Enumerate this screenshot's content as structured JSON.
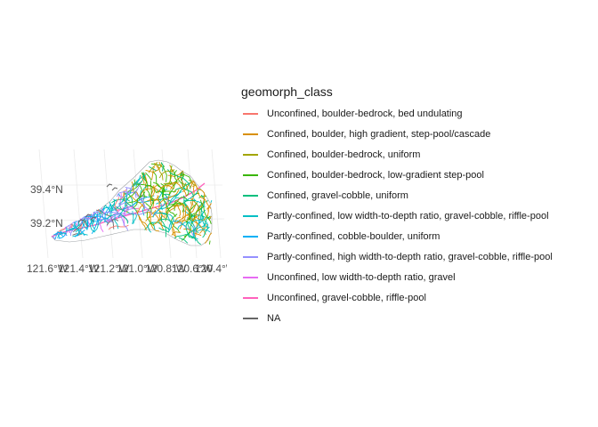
{
  "legend": {
    "title": "geomorph_class",
    "items": [
      {
        "label": "Unconfined, boulder-bedrock, bed undulating",
        "color": "#F8766D"
      },
      {
        "label": "Confined, boulder, high gradient, step-pool/cascade",
        "color": "#D89000"
      },
      {
        "label": "Confined, boulder-bedrock, uniform",
        "color": "#A3A500"
      },
      {
        "label": "Confined, boulder-bedrock, low-gradient step-pool",
        "color": "#39B600"
      },
      {
        "label": "Confined, gravel-cobble, uniform",
        "color": "#00BF7D"
      },
      {
        "label": "Partly-confined, low width-to-depth ratio, gravel-cobble, riffle-pool",
        "color": "#00BFC4"
      },
      {
        "label": "Partly-confined, cobble-boulder, uniform",
        "color": "#00B0F6"
      },
      {
        "label": "Partly-confined, high width-to-depth ratio, gravel-cobble, riffle-pool",
        "color": "#9590FF"
      },
      {
        "label": "Unconfined, low width-to-depth ratio, gravel",
        "color": "#E76BF3"
      },
      {
        "label": "Unconfined, gravel-cobble, riffle-pool",
        "color": "#FF62BC"
      },
      {
        "label": "NA",
        "color": "#666666"
      }
    ]
  },
  "map": {
    "y_ticks": [
      "39.4°N",
      "39.2°N"
    ],
    "x_ticks": [
      "121.6°W",
      "121.4°W",
      "121.2°W",
      "121.0°W",
      "120.8°W",
      "120.6°W",
      "120.4°W"
    ],
    "grid_color": "#ebebeb"
  }
}
